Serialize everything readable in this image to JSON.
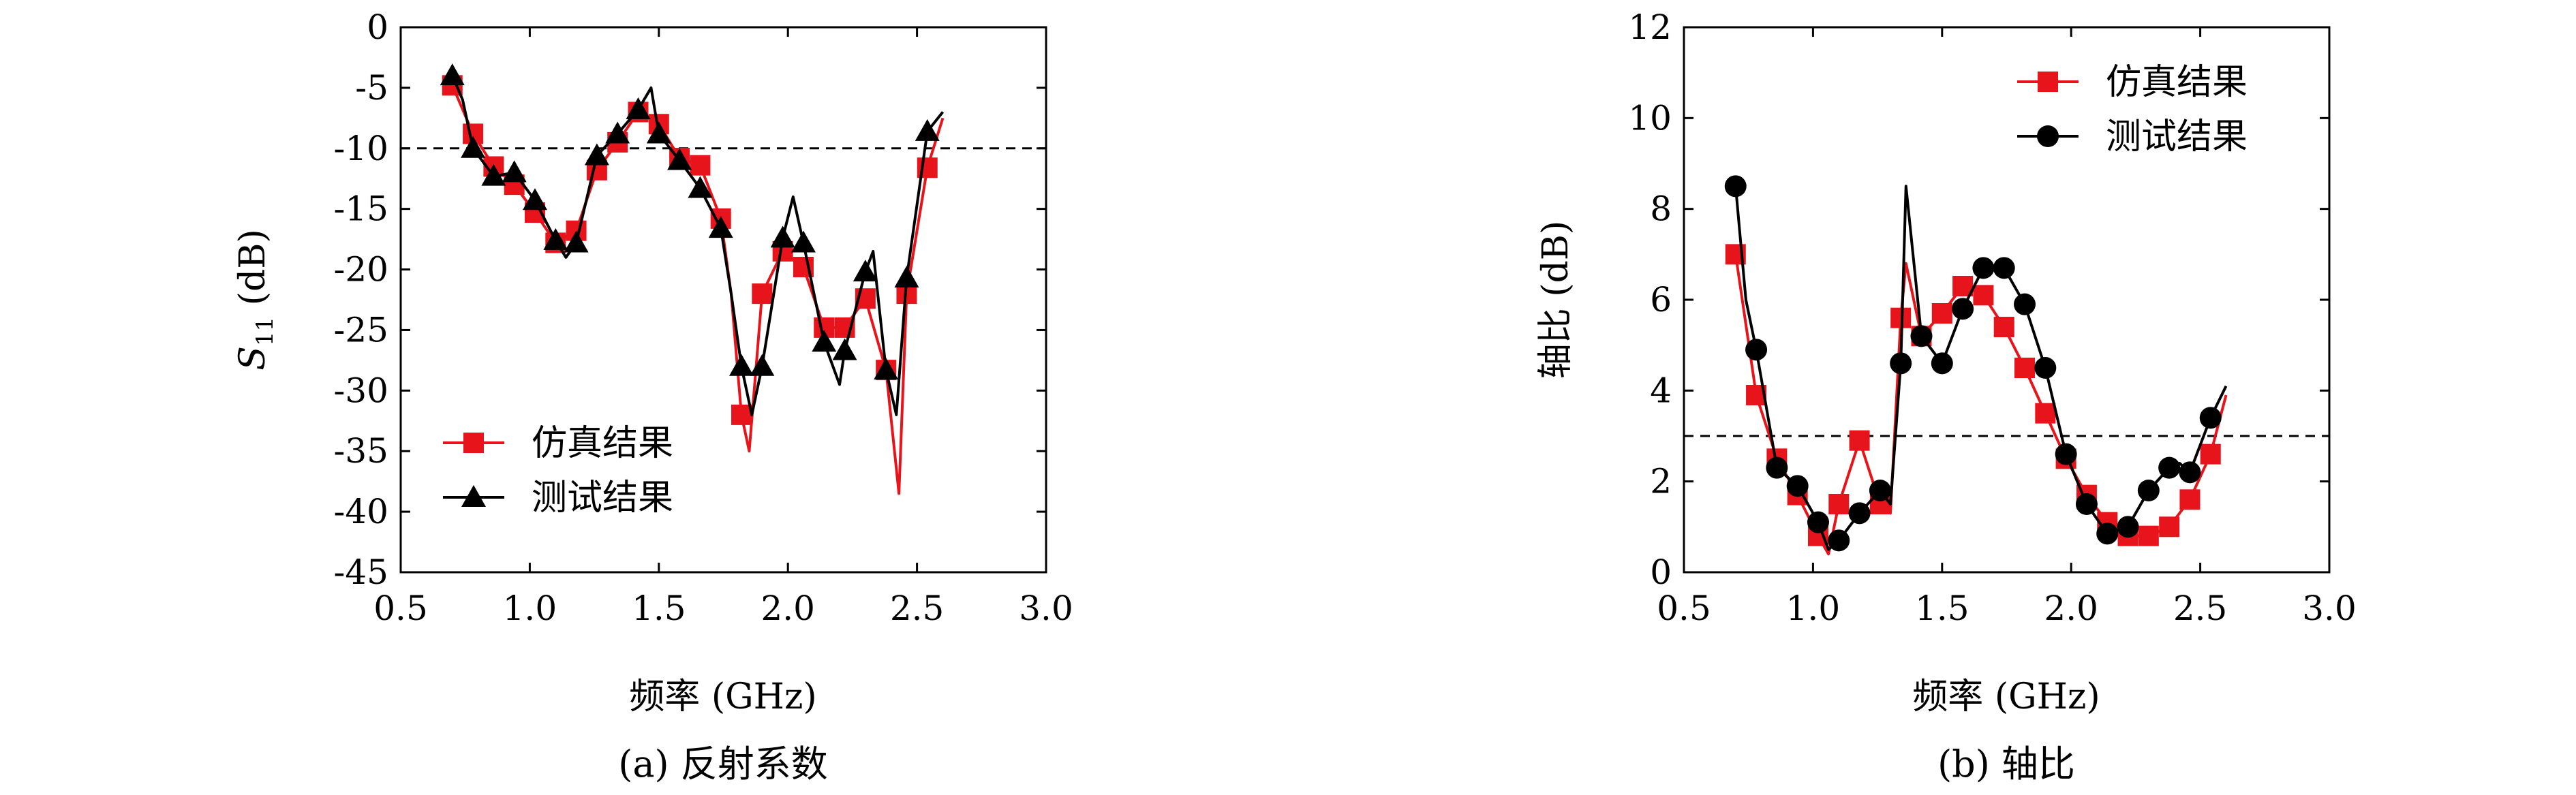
{
  "chart_data": [
    {
      "type": "line",
      "caption": "(a) 反射系数",
      "xlabel": "频率 (GHz)",
      "ylabel_main": "S",
      "ylabel_sub": "11",
      "ylabel_unit": " (dB)",
      "xlim": [
        0.5,
        3.0
      ],
      "ylim": [
        -45,
        0
      ],
      "xticks": [
        0.5,
        1.0,
        1.5,
        2.0,
        2.5,
        3.0
      ],
      "xtick_labels": [
        "0.5",
        "1.0",
        "1.5",
        "2.0",
        "2.5",
        "3.0"
      ],
      "yticks": [
        0,
        -5,
        -10,
        -15,
        -20,
        -25,
        -30,
        -35,
        -40,
        -45
      ],
      "ytick_labels": [
        "0",
        "-5",
        "-10",
        "-15",
        "-20",
        "-25",
        "-30",
        "-35",
        "-40",
        "-45"
      ],
      "reference_line": -10,
      "legend_position": "bottom-left",
      "series": [
        {
          "name": "仿真结果",
          "color": "#e8141b",
          "marker": "square",
          "x": [
            0.7,
            0.78,
            0.86,
            0.94,
            1.02,
            1.1,
            1.18,
            1.26,
            1.34,
            1.42,
            1.5,
            1.58,
            1.66,
            1.74,
            1.78,
            1.82,
            1.85,
            1.9,
            1.98,
            2.06,
            2.14,
            2.22,
            2.3,
            2.38,
            2.43,
            2.46,
            2.54,
            2.6
          ],
          "y": [
            -4.8,
            -8.8,
            -11.5,
            -13.0,
            -15.3,
            -17.8,
            -16.8,
            -11.8,
            -9.5,
            -7.0,
            -8.0,
            -10.8,
            -11.4,
            -15.8,
            -22,
            -32,
            -35,
            -22,
            -18.5,
            -19.8,
            -24.8,
            -24.8,
            -22.4,
            -28.3,
            -38.5,
            -22,
            -11.6,
            -7.5
          ],
          "markers_x": [
            0.7,
            0.78,
            0.86,
            0.94,
            1.02,
            1.1,
            1.18,
            1.26,
            1.34,
            1.42,
            1.5,
            1.58,
            1.66,
            1.74,
            1.82,
            1.9,
            1.98,
            2.06,
            2.14,
            2.22,
            2.3,
            2.38,
            2.46,
            2.54
          ],
          "markers_y": [
            -4.8,
            -8.8,
            -11.5,
            -13.0,
            -15.3,
            -17.8,
            -16.8,
            -11.8,
            -9.5,
            -7.0,
            -8.0,
            -10.8,
            -11.4,
            -15.8,
            -32.0,
            -22.0,
            -18.5,
            -19.8,
            -24.8,
            -24.8,
            -22.4,
            -28.3,
            -22.0,
            -11.6
          ]
        },
        {
          "name": "测试结果",
          "color": "#000000",
          "marker": "triangle",
          "x": [
            0.7,
            0.74,
            0.78,
            0.86,
            0.94,
            1.02,
            1.1,
            1.14,
            1.18,
            1.26,
            1.34,
            1.42,
            1.47,
            1.5,
            1.58,
            1.66,
            1.74,
            1.78,
            1.82,
            1.86,
            1.9,
            1.98,
            2.02,
            2.06,
            2.14,
            2.2,
            2.22,
            2.3,
            2.33,
            2.38,
            2.42,
            2.46,
            2.54,
            2.6
          ],
          "y": [
            -4.0,
            -6.0,
            -10.0,
            -12.3,
            -12.0,
            -14.3,
            -17.6,
            -19.0,
            -17.8,
            -10.6,
            -8.8,
            -6.8,
            -5.0,
            -8.8,
            -11.0,
            -13.3,
            -16.6,
            -22.0,
            -28.0,
            -32.0,
            -28.0,
            -17.4,
            -14.0,
            -17.8,
            -26.0,
            -29.5,
            -26.7,
            -20.2,
            -18.5,
            -28.3,
            -32.0,
            -20.7,
            -8.6,
            -7.0
          ],
          "markers_x": [
            0.7,
            0.78,
            0.86,
            0.94,
            1.02,
            1.1,
            1.18,
            1.26,
            1.34,
            1.42,
            1.5,
            1.58,
            1.66,
            1.74,
            1.82,
            1.9,
            1.98,
            2.06,
            2.14,
            2.22,
            2.3,
            2.38,
            2.46,
            2.54
          ],
          "markers_y": [
            -4.0,
            -10.0,
            -12.3,
            -12.0,
            -14.3,
            -17.6,
            -17.8,
            -10.6,
            -8.8,
            -6.8,
            -8.8,
            -11.0,
            -13.3,
            -16.6,
            -28.0,
            -28.0,
            -17.4,
            -17.8,
            -26.0,
            -26.7,
            -20.2,
            -28.3,
            -20.7,
            -8.6
          ]
        }
      ]
    },
    {
      "type": "line",
      "caption": "(b) 轴比",
      "xlabel": "频率 (GHz)",
      "ylabel": "轴比 (dB)",
      "xlim": [
        0.5,
        3.0
      ],
      "ylim": [
        0,
        12
      ],
      "xticks": [
        0.5,
        1.0,
        1.5,
        2.0,
        2.5,
        3.0
      ],
      "xtick_labels": [
        "0.5",
        "1.0",
        "1.5",
        "2.0",
        "2.5",
        "3.0"
      ],
      "yticks": [
        0,
        2,
        4,
        6,
        8,
        10,
        12
      ],
      "ytick_labels": [
        "0",
        "2",
        "4",
        "6",
        "8",
        "10",
        "12"
      ],
      "reference_line": 3,
      "legend_position": "top-right",
      "series": [
        {
          "name": "仿真结果",
          "color": "#e8141b",
          "marker": "square",
          "x": [
            0.7,
            0.78,
            0.86,
            0.94,
            1.02,
            1.06,
            1.1,
            1.18,
            1.26,
            1.3,
            1.34,
            1.36,
            1.42,
            1.5,
            1.58,
            1.66,
            1.74,
            1.82,
            1.9,
            1.98,
            2.06,
            2.14,
            2.22,
            2.3,
            2.38,
            2.46,
            2.54,
            2.6
          ],
          "y": [
            7.0,
            3.9,
            2.5,
            1.7,
            0.8,
            0.4,
            1.5,
            2.9,
            1.5,
            1.3,
            5.6,
            6.8,
            5.2,
            5.7,
            6.3,
            6.1,
            5.4,
            4.5,
            3.5,
            2.5,
            1.7,
            1.1,
            0.8,
            0.8,
            1.0,
            1.6,
            2.6,
            3.9
          ],
          "markers_x": [
            0.7,
            0.78,
            0.86,
            0.94,
            1.02,
            1.1,
            1.18,
            1.26,
            1.34,
            1.42,
            1.5,
            1.58,
            1.66,
            1.74,
            1.82,
            1.9,
            1.98,
            2.06,
            2.14,
            2.22,
            2.3,
            2.38,
            2.46,
            2.54
          ],
          "markers_y": [
            7.0,
            3.9,
            2.5,
            1.7,
            0.8,
            1.5,
            2.9,
            1.5,
            5.6,
            5.2,
            5.7,
            6.3,
            6.1,
            5.4,
            4.5,
            3.5,
            2.5,
            1.7,
            1.1,
            0.8,
            0.8,
            1.0,
            1.6,
            2.6
          ]
        },
        {
          "name": "测试结果",
          "color": "#000000",
          "marker": "circle",
          "x": [
            0.7,
            0.74,
            0.78,
            0.86,
            0.94,
            1.02,
            1.06,
            1.1,
            1.18,
            1.26,
            1.3,
            1.34,
            1.36,
            1.42,
            1.5,
            1.58,
            1.66,
            1.74,
            1.82,
            1.9,
            1.98,
            2.06,
            2.14,
            2.22,
            2.3,
            2.38,
            2.42,
            2.46,
            2.54,
            2.6
          ],
          "y": [
            8.5,
            6.0,
            4.9,
            2.3,
            1.9,
            1.1,
            0.5,
            0.7,
            1.3,
            1.8,
            1.5,
            4.6,
            8.5,
            5.2,
            4.6,
            5.8,
            6.7,
            6.7,
            5.9,
            4.5,
            2.6,
            1.5,
            0.85,
            1.0,
            1.8,
            2.3,
            2.4,
            2.2,
            3.4,
            4.1
          ],
          "markers_x": [
            0.7,
            0.78,
            0.86,
            0.94,
            1.02,
            1.1,
            1.18,
            1.26,
            1.34,
            1.42,
            1.5,
            1.58,
            1.66,
            1.74,
            1.82,
            1.9,
            1.98,
            2.06,
            2.14,
            2.22,
            2.3,
            2.38,
            2.46,
            2.54
          ],
          "markers_y": [
            8.5,
            4.9,
            2.3,
            1.9,
            1.1,
            0.7,
            1.3,
            1.8,
            4.6,
            5.2,
            4.6,
            5.8,
            6.7,
            6.7,
            5.9,
            4.5,
            2.6,
            1.5,
            0.85,
            1.0,
            1.8,
            2.3,
            2.2,
            3.4
          ]
        }
      ]
    }
  ]
}
